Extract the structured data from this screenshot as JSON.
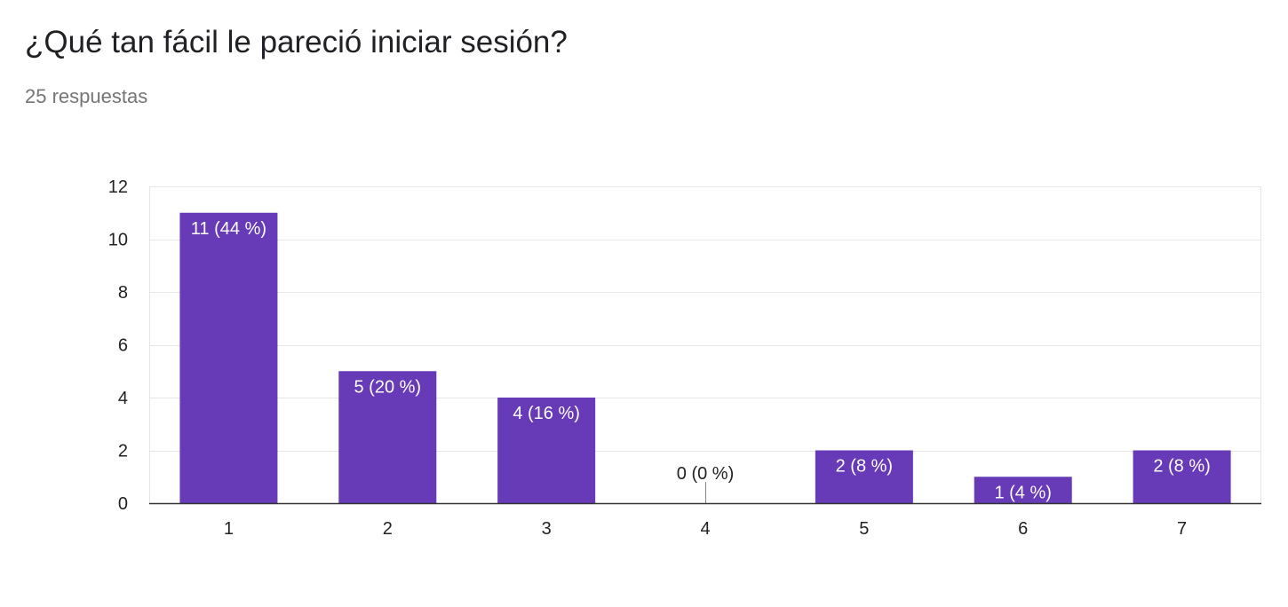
{
  "header": {
    "title": "¿Qué tan fácil le pareció iniciar sesión?",
    "subtitle": "25 respuestas"
  },
  "colors": {
    "bar": "#673ab7",
    "grid": "#e6e6e6",
    "axis": "#333333",
    "tick_text": "#222222",
    "label_inside": "#ffffff",
    "label_outside": "#222222"
  },
  "chart_data": {
    "type": "bar",
    "categories": [
      "1",
      "2",
      "3",
      "4",
      "5",
      "6",
      "7"
    ],
    "values": [
      11,
      5,
      4,
      0,
      2,
      1,
      2
    ],
    "data_labels": [
      "11 (44 %)",
      "5 (20 %)",
      "4 (16 %)",
      "0 (0 %)",
      "2 (8 %)",
      "1 (4 %)",
      "2 (8 %)"
    ],
    "title": "¿Qué tan fácil le pareció iniciar sesión?",
    "subtitle": "25 respuestas",
    "ylim": [
      0,
      12
    ],
    "yticks": [
      0,
      2,
      4,
      6,
      8,
      10,
      12
    ],
    "grid": true,
    "legend": "none"
  }
}
